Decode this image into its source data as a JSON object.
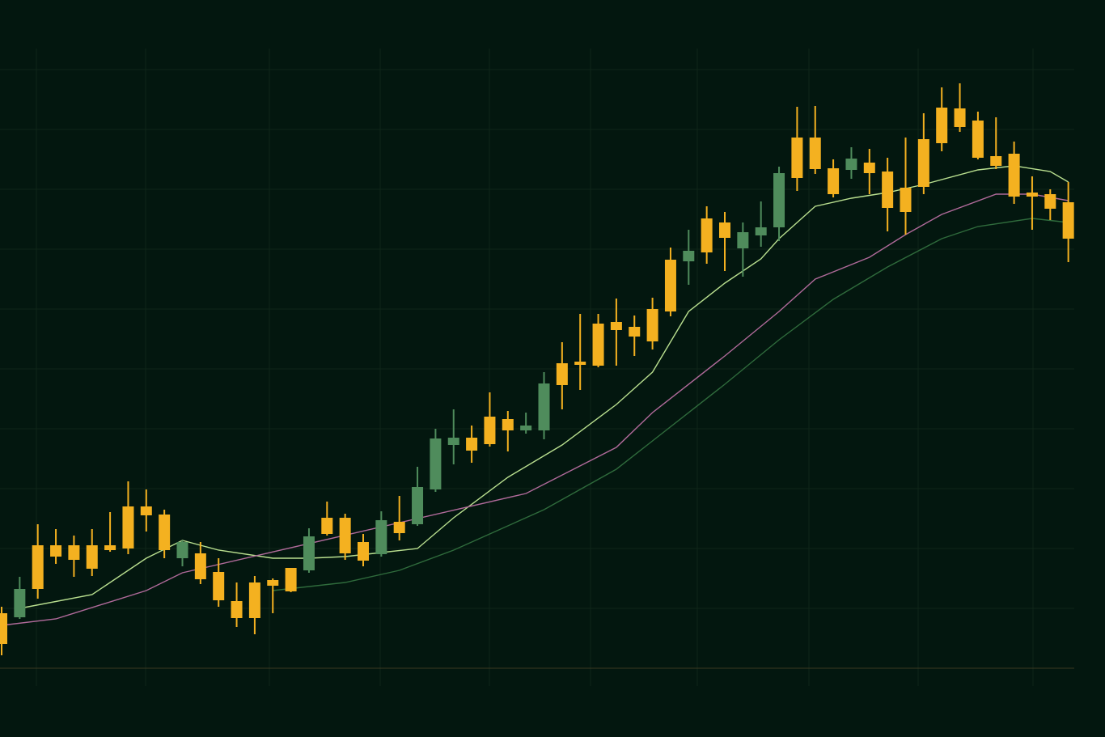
{
  "chart_data": {
    "type": "candlestick",
    "open": [
      30,
      98,
      98,
      138,
      134,
      123,
      146,
      148,
      189,
      146,
      156,
      110,
      84,
      62,
      62,
      102,
      95,
      163,
      166,
      142,
      133,
      183,
      167,
      224,
      284,
      285,
      269,
      277,
      294,
      300,
      352,
      350,
      375,
      374,
      418,
      410,
      404,
      441,
      516,
      514,
      532,
      539,
      545,
      612,
      606,
      617,
      586,
      630,
      612,
      569,
      564,
      595,
      649,
      669,
      631,
      621,
      583,
      583,
      568,
      531
    ],
    "high": [
      76,
      113,
      178,
      172,
      164,
      172,
      193,
      231,
      221,
      196,
      158,
      156,
      136,
      106,
      114,
      111,
      124,
      173,
      206,
      191,
      166,
      194,
      213,
      249,
      296,
      320,
      300,
      341,
      318,
      316,
      366,
      403,
      438,
      438,
      457,
      436,
      458,
      520,
      542,
      571,
      564,
      551,
      577,
      620,
      694,
      695,
      629,
      644,
      642,
      631,
      656,
      686,
      718,
      723,
      688,
      681,
      651,
      608,
      592,
      601
    ],
    "low": [
      16,
      61,
      86,
      129,
      113,
      114,
      144,
      141,
      169,
      136,
      126,
      104,
      76,
      51,
      42,
      68,
      94,
      118,
      164,
      134,
      126,
      138,
      158,
      176,
      218,
      252,
      254,
      274,
      268,
      290,
      283,
      320,
      344,
      372,
      374,
      386,
      394,
      435,
      474,
      500,
      491,
      484,
      521,
      528,
      590,
      611,
      582,
      605,
      586,
      540,
      536,
      586,
      639,
      663,
      629,
      617,
      574,
      542,
      554,
      502
    ],
    "close": [
      68,
      63,
      152,
      152,
      152,
      152,
      152,
      200,
      200,
      190,
      136,
      142,
      119,
      83,
      106,
      109,
      124,
      121,
      186,
      186,
      156,
      141,
      181,
      178,
      221,
      276,
      285,
      311,
      308,
      294,
      294,
      377,
      379,
      426,
      428,
      422,
      444,
      505,
      503,
      556,
      551,
      519,
      535,
      545,
      656,
      656,
      618,
      616,
      625,
      614,
      594,
      654,
      693,
      692,
      677,
      633,
      636,
      588,
      586,
      576
    ],
    "up_color": "#f4b120",
    "down_color": "#4f8c5c",
    "ylim": [
      0,
      766
    ],
    "yticks": [
      0,
      74,
      148,
      222,
      296,
      370,
      444,
      518,
      592,
      666,
      740
    ],
    "grid": true,
    "lines": [
      {
        "color": "#b9df8f",
        "x": [
          1,
          5,
          8,
          10,
          12,
          15,
          17,
          19,
          21,
          23,
          25,
          28,
          31,
          34,
          36,
          38,
          40,
          42,
          43,
          45,
          47,
          49,
          51,
          54,
          56,
          58,
          59
        ],
        "values": [
          74,
          91,
          136,
          158,
          146,
          136,
          136,
          138,
          143,
          148,
          186,
          236,
          276,
          326,
          366,
          441,
          476,
          506,
          531,
          571,
          581,
          588,
          598,
          616,
          621,
          614,
          601
        ]
      },
      {
        "color": "#b06a9a",
        "x": [
          0,
          3,
          8,
          10,
          29,
          34,
          36,
          40,
          43,
          45,
          48,
          50,
          52,
          55,
          57,
          59
        ],
        "values": [
          53,
          61,
          96,
          118,
          216,
          273,
          316,
          386,
          441,
          481,
          508,
          536,
          561,
          586,
          586,
          578
        ]
      },
      {
        "color": "#2f6b3c",
        "x": [
          15,
          19,
          22,
          25,
          28,
          30,
          34,
          36,
          40,
          43,
          46,
          49,
          52,
          54,
          57,
          59
        ],
        "values": [
          96,
          106,
          121,
          146,
          176,
          196,
          246,
          281,
          351,
          406,
          456,
          496,
          531,
          546,
          556,
          551
        ]
      }
    ]
  }
}
